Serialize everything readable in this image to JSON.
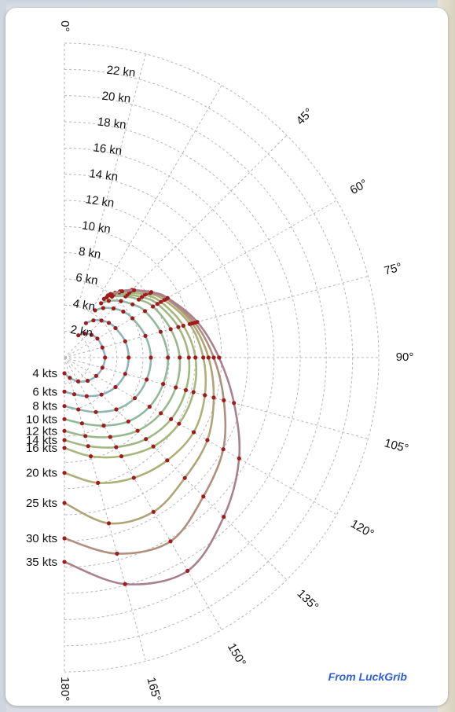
{
  "credit": "From LuckGrib",
  "colors": {
    "point": "#a01c1c",
    "grid": "#b5b5b5",
    "credit": "#2f5fd8",
    "series": [
      "#8fb3c4",
      "#8ab3be",
      "#8fb7ae",
      "#90b89a",
      "#98b98c",
      "#9fb882",
      "#a7b67c",
      "#aeb079",
      "#b1a378",
      "#b08f7d",
      "#a98090",
      "#a87fb0"
    ]
  },
  "chart_data": {
    "type": "polar-line",
    "angle_ticks": [
      "0°",
      "45°",
      "60°",
      "75°",
      "90°",
      "105°",
      "120°",
      "135°",
      "150°",
      "165°",
      "180°"
    ],
    "angle_values": [
      0,
      45,
      60,
      75,
      90,
      105,
      120,
      135,
      150,
      165,
      180
    ],
    "radial_ticks": [
      "2 kn",
      "4 kn",
      "6 kn",
      "8 kn",
      "10 kn",
      "12 kn",
      "14 kn",
      "16 kn",
      "18 kn",
      "20 kn",
      "22 kn"
    ],
    "radial_values": [
      2,
      4,
      6,
      8,
      10,
      12,
      14,
      16,
      18,
      20,
      22
    ],
    "rmax": 24,
    "series": [
      {
        "name": "4 kts",
        "points": [
          [
            32,
            2.0
          ],
          [
            40,
            2.4
          ],
          [
            50,
            2.7
          ],
          [
            60,
            2.9
          ],
          [
            75,
            3.0
          ],
          [
            90,
            3.1
          ],
          [
            105,
            3.0
          ],
          [
            120,
            2.8
          ],
          [
            135,
            2.5
          ],
          [
            150,
            2.1
          ],
          [
            165,
            1.6
          ],
          [
            180,
            1.2
          ]
        ]
      },
      {
        "name": "6 kts",
        "points": [
          [
            32,
            3.1
          ],
          [
            38,
            3.6
          ],
          [
            45,
            4.0
          ],
          [
            52,
            4.3
          ],
          [
            60,
            4.5
          ],
          [
            75,
            4.8
          ],
          [
            90,
            4.9
          ],
          [
            105,
            4.8
          ],
          [
            120,
            4.5
          ],
          [
            135,
            4.0
          ],
          [
            150,
            3.4
          ],
          [
            165,
            2.9
          ],
          [
            180,
            2.6
          ]
        ]
      },
      {
        "name": "8 kts",
        "points": [
          [
            33,
            4.3
          ],
          [
            38,
            4.8
          ],
          [
            45,
            5.3
          ],
          [
            52,
            5.7
          ],
          [
            60,
            6.0
          ],
          [
            75,
            6.4
          ],
          [
            90,
            6.6
          ],
          [
            105,
            6.5
          ],
          [
            120,
            6.2
          ],
          [
            135,
            5.6
          ],
          [
            150,
            4.8
          ],
          [
            165,
            4.1
          ],
          [
            180,
            3.7
          ]
        ]
      },
      {
        "name": "10 kts",
        "points": [
          [
            34,
            5.0
          ],
          [
            38,
            5.5
          ],
          [
            45,
            6.1
          ],
          [
            52,
            6.6
          ],
          [
            60,
            7.1
          ],
          [
            75,
            7.6
          ],
          [
            90,
            7.9
          ],
          [
            105,
            7.8
          ],
          [
            120,
            7.5
          ],
          [
            135,
            6.9
          ],
          [
            150,
            6.0
          ],
          [
            165,
            5.2
          ],
          [
            180,
            4.7
          ]
        ]
      },
      {
        "name": "12 kts",
        "points": [
          [
            34,
            5.4
          ],
          [
            38,
            5.9
          ],
          [
            45,
            6.6
          ],
          [
            52,
            7.2
          ],
          [
            60,
            7.8
          ],
          [
            75,
            8.4
          ],
          [
            90,
            8.8
          ],
          [
            105,
            8.8
          ],
          [
            120,
            8.5
          ],
          [
            135,
            7.9
          ],
          [
            150,
            7.0
          ],
          [
            165,
            6.2
          ],
          [
            180,
            5.6
          ]
        ]
      },
      {
        "name": "14 kts",
        "points": [
          [
            35,
            5.6
          ],
          [
            38,
            6.1
          ],
          [
            45,
            6.8
          ],
          [
            52,
            7.5
          ],
          [
            60,
            8.2
          ],
          [
            75,
            9.0
          ],
          [
            90,
            9.5
          ],
          [
            105,
            9.6
          ],
          [
            120,
            9.4
          ],
          [
            135,
            8.8
          ],
          [
            150,
            7.9
          ],
          [
            165,
            7.0
          ],
          [
            180,
            6.3
          ]
        ]
      },
      {
        "name": "16 kts",
        "points": [
          [
            35,
            5.8
          ],
          [
            38,
            6.3
          ],
          [
            45,
            7.0
          ],
          [
            52,
            7.8
          ],
          [
            60,
            8.5
          ],
          [
            75,
            9.4
          ],
          [
            90,
            10.0
          ],
          [
            105,
            10.2
          ],
          [
            120,
            10.1
          ],
          [
            135,
            9.6
          ],
          [
            150,
            8.7
          ],
          [
            165,
            7.8
          ],
          [
            180,
            6.9
          ]
        ]
      },
      {
        "name": "20 kts",
        "points": [
          [
            36,
            5.9
          ],
          [
            40,
            6.5
          ],
          [
            45,
            7.2
          ],
          [
            52,
            8.0
          ],
          [
            60,
            8.8
          ],
          [
            75,
            9.9
          ],
          [
            90,
            10.6
          ],
          [
            105,
            11.1
          ],
          [
            120,
            11.4
          ],
          [
            135,
            11.1
          ],
          [
            150,
            10.6
          ],
          [
            165,
            9.9
          ],
          [
            180,
            8.8
          ]
        ]
      },
      {
        "name": "25 kts",
        "points": [
          [
            36,
            6.0
          ],
          [
            40,
            6.6
          ],
          [
            45,
            7.3
          ],
          [
            52,
            8.1
          ],
          [
            60,
            9.0
          ],
          [
            75,
            10.1
          ],
          [
            90,
            11.0
          ],
          [
            105,
            11.8
          ],
          [
            120,
            12.6
          ],
          [
            135,
            13.0
          ],
          [
            150,
            13.6
          ],
          [
            165,
            13.1
          ],
          [
            180,
            11.1
          ]
        ]
      },
      {
        "name": "30 kts",
        "points": [
          [
            37,
            6.0
          ],
          [
            41,
            6.7
          ],
          [
            46,
            7.4
          ],
          [
            53,
            8.2
          ],
          [
            60,
            9.0
          ],
          [
            75,
            10.3
          ],
          [
            90,
            11.4
          ],
          [
            105,
            12.6
          ],
          [
            120,
            14.0
          ],
          [
            135,
            15.0
          ],
          [
            150,
            16.2
          ],
          [
            165,
            15.5
          ],
          [
            180,
            13.8
          ]
        ]
      },
      {
        "name": "35 kts",
        "points": [
          [
            37,
            6.0
          ],
          [
            41,
            6.7
          ],
          [
            46,
            7.4
          ],
          [
            53,
            8.3
          ],
          [
            60,
            9.1
          ],
          [
            75,
            10.5
          ],
          [
            90,
            11.8
          ],
          [
            105,
            13.4
          ],
          [
            120,
            15.4
          ],
          [
            135,
            17.2
          ],
          [
            150,
            18.8
          ],
          [
            165,
            17.9
          ],
          [
            180,
            15.6
          ]
        ]
      }
    ]
  }
}
